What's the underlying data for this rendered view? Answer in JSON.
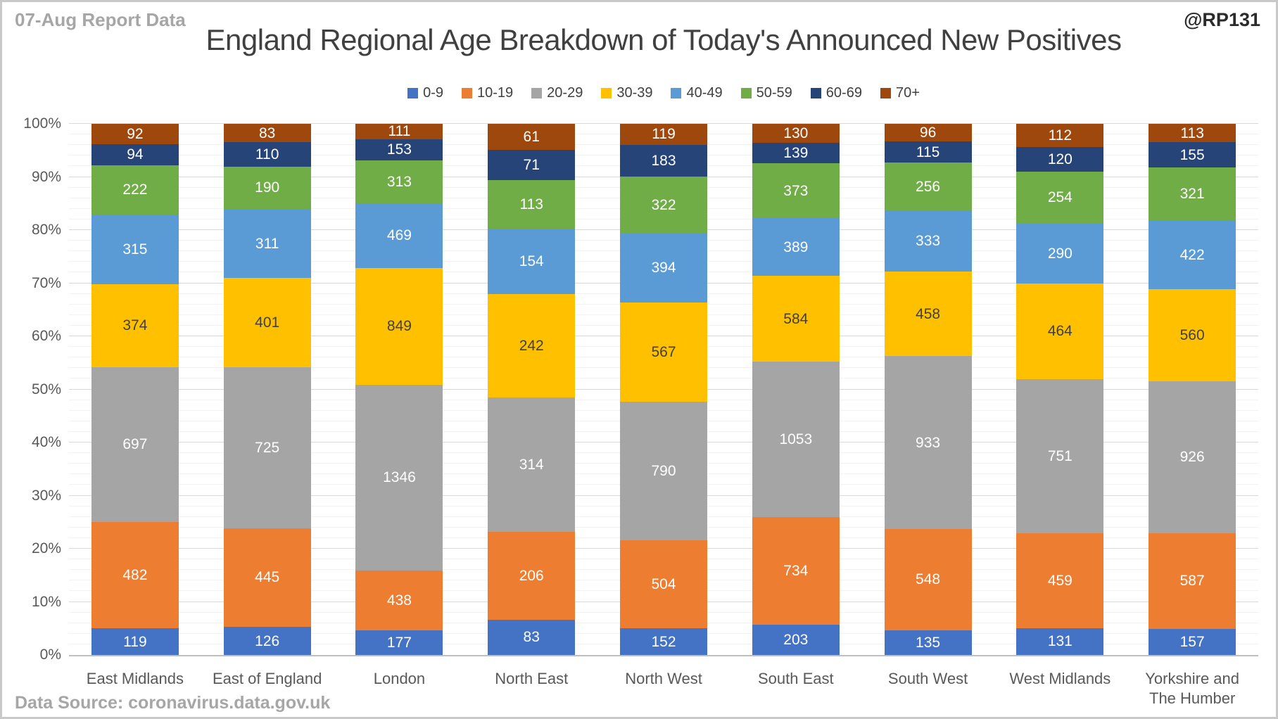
{
  "header": {
    "report_label": "07-Aug Report Data",
    "watermark": "@RP131",
    "title": "England Regional Age Breakdown of Today's Announced New Positives"
  },
  "footer": {
    "data_source": "Data Source: coronavirus.data.gov.uk"
  },
  "chart_data": {
    "type": "bar",
    "variant": "100-percent-stacked-column",
    "title": "England Regional Age Breakdown of Today's Announced New Positives",
    "categories": [
      "East Midlands",
      "East of England",
      "London",
      "North East",
      "North West",
      "South East",
      "South West",
      "West Midlands",
      "Yorkshire and The Humber"
    ],
    "series": [
      {
        "name": "0-9",
        "color": "#4472C4",
        "label_color": "#FFFFFF",
        "values": [
          119,
          126,
          177,
          83,
          152,
          203,
          135,
          131,
          157
        ]
      },
      {
        "name": "10-19",
        "color": "#ED7D31",
        "label_color": "#FFFFFF",
        "values": [
          482,
          445,
          438,
          206,
          504,
          734,
          548,
          459,
          587
        ]
      },
      {
        "name": "20-29",
        "color": "#A5A5A5",
        "label_color": "#FFFFFF",
        "values": [
          697,
          725,
          1346,
          314,
          790,
          1053,
          933,
          751,
          926
        ]
      },
      {
        "name": "30-39",
        "color": "#FFC000",
        "label_color": "#404040",
        "values": [
          374,
          401,
          849,
          242,
          567,
          584,
          458,
          464,
          560
        ]
      },
      {
        "name": "40-49",
        "color": "#5B9BD5",
        "label_color": "#FFFFFF",
        "values": [
          315,
          311,
          469,
          154,
          394,
          389,
          333,
          290,
          422
        ]
      },
      {
        "name": "50-59",
        "color": "#70AD47",
        "label_color": "#FFFFFF",
        "values": [
          222,
          190,
          313,
          113,
          322,
          373,
          256,
          254,
          321
        ]
      },
      {
        "name": "60-69",
        "color": "#264478",
        "label_color": "#FFFFFF",
        "values": [
          94,
          110,
          153,
          71,
          183,
          139,
          115,
          120,
          155
        ]
      },
      {
        "name": "70+",
        "color": "#9E480E",
        "label_color": "#FFFFFF",
        "values": [
          92,
          83,
          111,
          61,
          119,
          130,
          96,
          112,
          113
        ]
      }
    ],
    "y_axis": {
      "min": 0,
      "max": 100,
      "major_step": 10,
      "minor_step": 2,
      "format": "percent",
      "tick_labels": [
        "0%",
        "10%",
        "20%",
        "30%",
        "40%",
        "50%",
        "60%",
        "70%",
        "80%",
        "90%",
        "100%"
      ]
    },
    "legend_position": "top",
    "grid": {
      "major_color": "#D9D9D9",
      "minor_color": "#F2F2F2",
      "axis_color": "#BFBFBF"
    },
    "data_labels": "shown-on-every-segment"
  }
}
